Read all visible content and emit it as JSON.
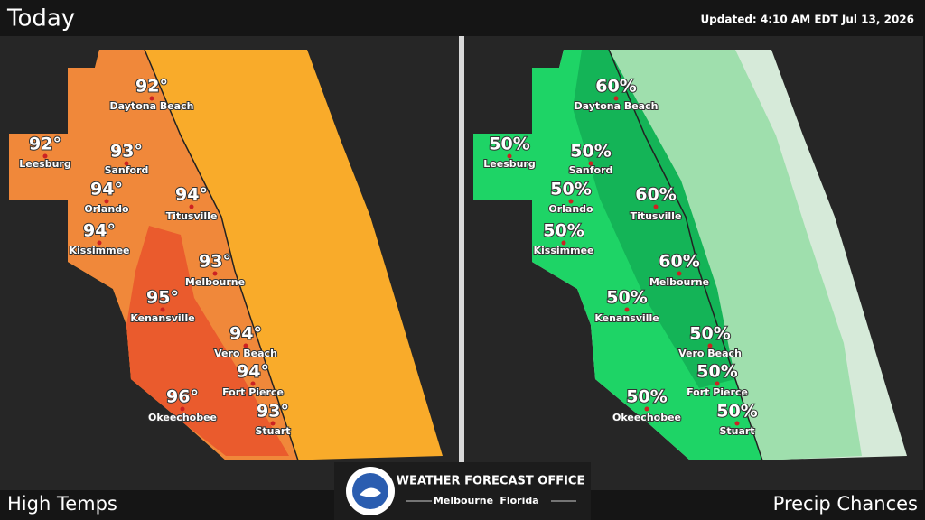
{
  "header": {
    "title": "Today",
    "updated": "Updated:  4:10 AM EDT Jul 13, 2026"
  },
  "panels": [
    {
      "label": "High Temps",
      "cities": [
        {
          "name": "Daytona Beach",
          "value": "92°"
        },
        {
          "name": "Leesburg",
          "value": "92°"
        },
        {
          "name": "Sanford",
          "value": "93°"
        },
        {
          "name": "Orlando",
          "value": "94°"
        },
        {
          "name": "Titusville",
          "value": "94°"
        },
        {
          "name": "Kissimmee",
          "value": "94°"
        },
        {
          "name": "Melbourne",
          "value": "93°"
        },
        {
          "name": "Kenansville",
          "value": "95°"
        },
        {
          "name": "Vero Beach",
          "value": "94°"
        },
        {
          "name": "Fort Pierce",
          "value": "94°"
        },
        {
          "name": "Okeechobee",
          "value": "96°"
        },
        {
          "name": "Stuart",
          "value": "93°"
        }
      ]
    },
    {
      "label": "Precip Chances",
      "cities": [
        {
          "name": "Daytona Beach",
          "value": "60%"
        },
        {
          "name": "Leesburg",
          "value": "50%"
        },
        {
          "name": "Sanford",
          "value": "50%"
        },
        {
          "name": "Orlando",
          "value": "50%"
        },
        {
          "name": "Titusville",
          "value": "60%"
        },
        {
          "name": "Kissimmee",
          "value": "50%"
        },
        {
          "name": "Melbourne",
          "value": "60%"
        },
        {
          "name": "Kenansville",
          "value": "50%"
        },
        {
          "name": "Vero Beach",
          "value": "50%"
        },
        {
          "name": "Fort Pierce",
          "value": "50%"
        },
        {
          "name": "Okeechobee",
          "value": "50%"
        },
        {
          "name": "Stuart",
          "value": "50%"
        }
      ]
    }
  ],
  "logo": {
    "title": "WEATHER FORECAST OFFICE",
    "city": "Melbourne",
    "state": "Florida"
  }
}
